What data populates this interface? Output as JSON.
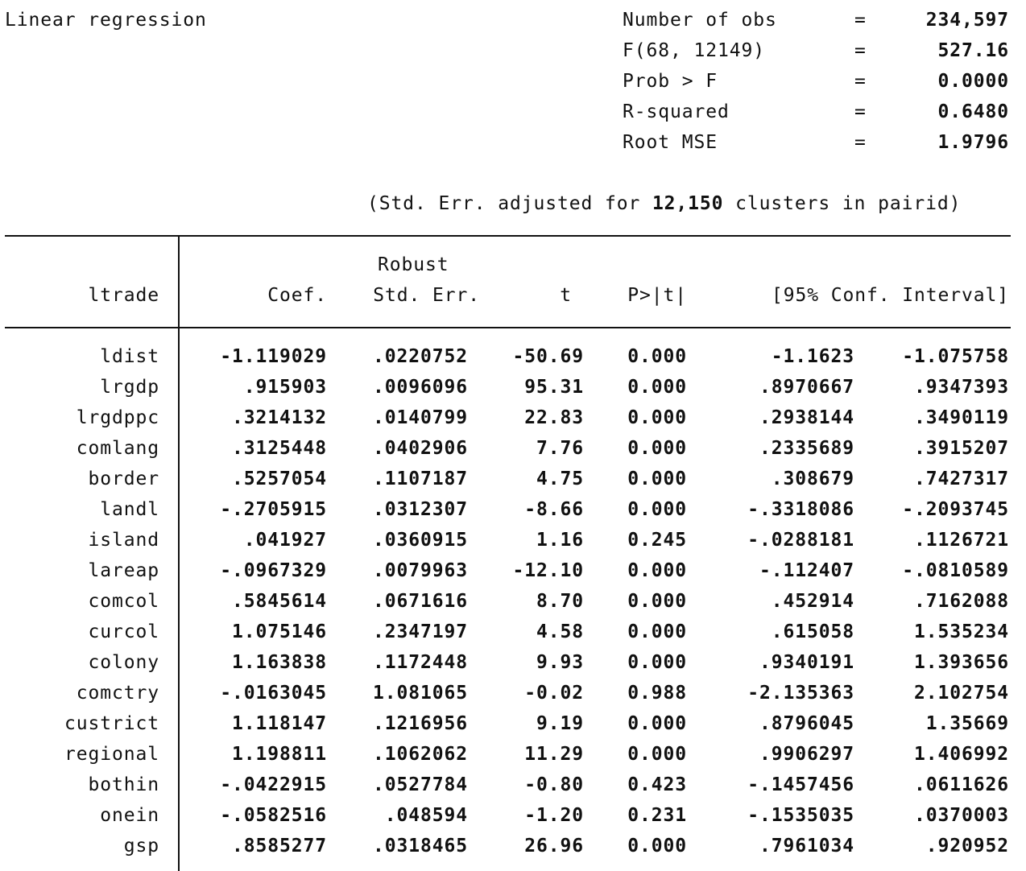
{
  "title": "Linear regression",
  "stats": [
    {
      "label": "Number of obs",
      "eq": "=",
      "value": "234,597"
    },
    {
      "label": "F(68, 12149)",
      "eq": "=",
      "value": "527.16"
    },
    {
      "label": "Prob > F",
      "eq": "=",
      "value": "0.0000"
    },
    {
      "label": "R-squared",
      "eq": "=",
      "value": "0.6480"
    },
    {
      "label": "Root MSE",
      "eq": "=",
      "value": "1.9796"
    }
  ],
  "cluster_note": {
    "prefix": "(Std. Err. adjusted for",
    "count": "12,150",
    "suffix": "clusters in pairid)"
  },
  "table": {
    "robust_label": "Robust",
    "headers": {
      "depvar": "ltrade",
      "coef": "Coef.",
      "se": "Std. Err.",
      "t": "t",
      "p": "P>|t|",
      "ci": "[95% Conf. Interval]"
    },
    "rows": [
      {
        "var": "ldist",
        "coef": "-1.119029",
        "se": ".0220752",
        "t": "-50.69",
        "p": "0.000",
        "ci_low": "-1.1623",
        "ci_high": "-1.075758"
      },
      {
        "var": "lrgdp",
        "coef": ".915903",
        "se": ".0096096",
        "t": "95.31",
        "p": "0.000",
        "ci_low": ".8970667",
        "ci_high": ".9347393"
      },
      {
        "var": "lrgdppc",
        "coef": ".3214132",
        "se": ".0140799",
        "t": "22.83",
        "p": "0.000",
        "ci_low": ".2938144",
        "ci_high": ".3490119"
      },
      {
        "var": "comlang",
        "coef": ".3125448",
        "se": ".0402906",
        "t": "7.76",
        "p": "0.000",
        "ci_low": ".2335689",
        "ci_high": ".3915207"
      },
      {
        "var": "border",
        "coef": ".5257054",
        "se": ".1107187",
        "t": "4.75",
        "p": "0.000",
        "ci_low": ".308679",
        "ci_high": ".7427317"
      },
      {
        "var": "landl",
        "coef": "-.2705915",
        "se": ".0312307",
        "t": "-8.66",
        "p": "0.000",
        "ci_low": "-.3318086",
        "ci_high": "-.2093745"
      },
      {
        "var": "island",
        "coef": ".041927",
        "se": ".0360915",
        "t": "1.16",
        "p": "0.245",
        "ci_low": "-.0288181",
        "ci_high": ".1126721"
      },
      {
        "var": "lareap",
        "coef": "-.0967329",
        "se": ".0079963",
        "t": "-12.10",
        "p": "0.000",
        "ci_low": "-.112407",
        "ci_high": "-.0810589"
      },
      {
        "var": "comcol",
        "coef": ".5845614",
        "se": ".0671616",
        "t": "8.70",
        "p": "0.000",
        "ci_low": ".452914",
        "ci_high": ".7162088"
      },
      {
        "var": "curcol",
        "coef": "1.075146",
        "se": ".2347197",
        "t": "4.58",
        "p": "0.000",
        "ci_low": ".615058",
        "ci_high": "1.535234"
      },
      {
        "var": "colony",
        "coef": "1.163838",
        "se": ".1172448",
        "t": "9.93",
        "p": "0.000",
        "ci_low": ".9340191",
        "ci_high": "1.393656"
      },
      {
        "var": "comctry",
        "coef": "-.0163045",
        "se": "1.081065",
        "t": "-0.02",
        "p": "0.988",
        "ci_low": "-2.135363",
        "ci_high": "2.102754"
      },
      {
        "var": "custrict",
        "coef": "1.118147",
        "se": ".1216956",
        "t": "9.19",
        "p": "0.000",
        "ci_low": ".8796045",
        "ci_high": "1.35669"
      },
      {
        "var": "regional",
        "coef": "1.198811",
        "se": ".1062062",
        "t": "11.29",
        "p": "0.000",
        "ci_low": ".9906297",
        "ci_high": "1.406992"
      },
      {
        "var": "bothin",
        "coef": "-.0422915",
        "se": ".0527784",
        "t": "-0.80",
        "p": "0.423",
        "ci_low": "-.1457456",
        "ci_high": ".0611626"
      },
      {
        "var": "onein",
        "coef": "-.0582516",
        "se": ".048594",
        "t": "-1.20",
        "p": "0.231",
        "ci_low": "-.1535035",
        "ci_high": ".0370003"
      },
      {
        "var": "gsp",
        "coef": ".8585277",
        "se": ".0318465",
        "t": "26.96",
        "p": "0.000",
        "ci_low": ".7961034",
        "ci_high": ".920952"
      }
    ]
  }
}
